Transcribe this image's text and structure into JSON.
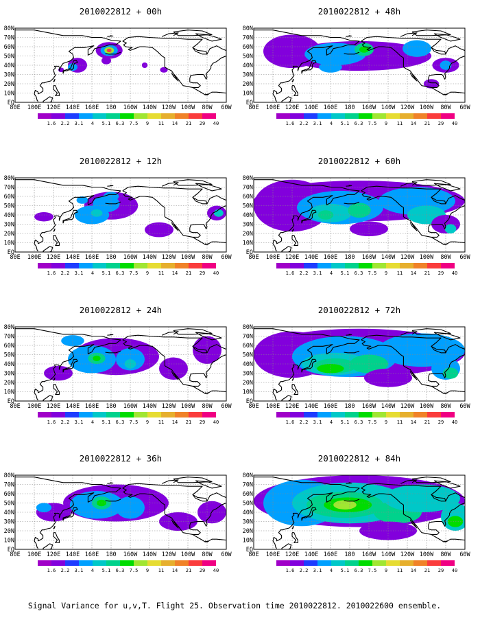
{
  "figure": {
    "caption": "Signal Variance for u,v,T. Flight 25. Observation time 2010022812. 2010022600 ensemble."
  },
  "axes": {
    "lon_ticks": [
      "80E",
      "100E",
      "120E",
      "140E",
      "160E",
      "180",
      "160W",
      "140W",
      "120W",
      "100W",
      "80W",
      "60W"
    ],
    "lat_ticks": [
      "EQ",
      "10N",
      "20N",
      "30N",
      "40N",
      "50N",
      "60N",
      "70N",
      "80N"
    ],
    "lon_range": [
      80,
      300
    ],
    "lat_range": [
      0,
      80
    ]
  },
  "colorbar": {
    "labels": [
      "1.6",
      "2.2",
      "3.1",
      "4",
      "5.1",
      "6.3",
      "7.5",
      "9",
      "11",
      "14",
      "21",
      "29",
      "40"
    ],
    "colors": [
      "#a000c8",
      "#8200dc",
      "#1e3cff",
      "#00a0ff",
      "#00c8c8",
      "#00d28c",
      "#00dc00",
      "#a0e632",
      "#e6dc32",
      "#e6af2d",
      "#f08228",
      "#fa3c3c",
      "#f00082"
    ]
  },
  "panels": [
    {
      "title": "2010022812 + 00h",
      "lead_h": 0,
      "blobs": [
        [
          178,
          56,
          14,
          9,
          1
        ],
        [
          178,
          56,
          9,
          6,
          3
        ],
        [
          178,
          56,
          5,
          3.5,
          7
        ],
        [
          178,
          56,
          2.5,
          2,
          11
        ],
        [
          145,
          40,
          10,
          8,
          1
        ],
        [
          140,
          38,
          5,
          4,
          3
        ],
        [
          235,
          35,
          4,
          3,
          1
        ],
        [
          215,
          40,
          3,
          3,
          1
        ],
        [
          128,
          35,
          3,
          2.5,
          1
        ],
        [
          175,
          45,
          5,
          4,
          1
        ]
      ]
    },
    {
      "title": "2010022812 + 48h",
      "lead_h": 48,
      "blobs": [
        [
          190,
          50,
          75,
          16,
          1
        ],
        [
          120,
          55,
          30,
          18,
          1
        ],
        [
          165,
          52,
          32,
          12,
          3
        ],
        [
          160,
          38,
          12,
          6,
          3
        ],
        [
          195,
          57,
          10,
          7,
          5
        ],
        [
          195,
          57,
          5,
          3.5,
          6
        ],
        [
          250,
          58,
          15,
          9,
          3
        ],
        [
          280,
          40,
          14,
          8,
          1
        ],
        [
          280,
          40,
          6,
          5,
          3
        ],
        [
          265,
          20,
          8,
          5,
          1
        ]
      ]
    },
    {
      "title": "2010022812 + 12h",
      "lead_h": 12,
      "blobs": [
        [
          180,
          50,
          28,
          15,
          1
        ],
        [
          160,
          40,
          18,
          10,
          3
        ],
        [
          175,
          52,
          14,
          9,
          3
        ],
        [
          165,
          42,
          6,
          4,
          4
        ],
        [
          180,
          60,
          8,
          5,
          3
        ],
        [
          150,
          56,
          6,
          4,
          3
        ],
        [
          110,
          38,
          10,
          5,
          1
        ],
        [
          230,
          24,
          15,
          8,
          1
        ],
        [
          290,
          42,
          10,
          8,
          1
        ],
        [
          292,
          42,
          5,
          4,
          4
        ]
      ]
    },
    {
      "title": "2010022812 + 60h",
      "lead_h": 60,
      "blobs": [
        [
          190,
          55,
          110,
          22,
          1
        ],
        [
          120,
          50,
          40,
          28,
          1
        ],
        [
          170,
          48,
          45,
          18,
          3
        ],
        [
          160,
          42,
          22,
          10,
          4
        ],
        [
          155,
          40,
          8,
          5,
          5
        ],
        [
          190,
          45,
          12,
          8,
          5
        ],
        [
          250,
          55,
          40,
          15,
          3
        ],
        [
          260,
          40,
          20,
          10,
          4
        ],
        [
          280,
          30,
          15,
          10,
          1
        ],
        [
          285,
          25,
          6,
          5,
          4
        ],
        [
          200,
          25,
          20,
          8,
          1
        ]
      ]
    },
    {
      "title": "2010022812 + 24h",
      "lead_h": 24,
      "blobs": [
        [
          185,
          48,
          45,
          20,
          1
        ],
        [
          160,
          45,
          25,
          15,
          3
        ],
        [
          165,
          46,
          9,
          6,
          5
        ],
        [
          165,
          46,
          4,
          3,
          6
        ],
        [
          200,
          45,
          15,
          12,
          3
        ],
        [
          200,
          40,
          6,
          5,
          4
        ],
        [
          125,
          30,
          15,
          8,
          1
        ],
        [
          245,
          35,
          15,
          12,
          1
        ],
        [
          280,
          55,
          15,
          15,
          1
        ],
        [
          140,
          65,
          12,
          6,
          3
        ]
      ]
    },
    {
      "title": "2010022812 + 72h",
      "lead_h": 72,
      "blobs": [
        [
          190,
          52,
          110,
          26,
          1
        ],
        [
          120,
          50,
          40,
          25,
          1
        ],
        [
          175,
          48,
          55,
          22,
          3
        ],
        [
          165,
          40,
          35,
          12,
          4
        ],
        [
          165,
          38,
          22,
          8,
          5
        ],
        [
          160,
          35,
          14,
          5,
          6
        ],
        [
          200,
          40,
          20,
          10,
          5
        ],
        [
          255,
          55,
          45,
          18,
          3
        ],
        [
          280,
          35,
          15,
          12,
          3
        ],
        [
          285,
          30,
          8,
          6,
          5
        ],
        [
          220,
          25,
          25,
          10,
          1
        ]
      ]
    },
    {
      "title": "2010022812 + 36h",
      "lead_h": 36,
      "blobs": [
        [
          185,
          50,
          55,
          20,
          1
        ],
        [
          165,
          48,
          28,
          15,
          3
        ],
        [
          170,
          50,
          10,
          7,
          5
        ],
        [
          170,
          50,
          5,
          3.5,
          6
        ],
        [
          200,
          45,
          15,
          12,
          3
        ],
        [
          120,
          40,
          18,
          10,
          1
        ],
        [
          110,
          45,
          8,
          5,
          3
        ],
        [
          250,
          30,
          20,
          10,
          1
        ],
        [
          285,
          40,
          15,
          12,
          1
        ]
      ]
    },
    {
      "title": "2010022812 + 84h",
      "lead_h": 84,
      "blobs": [
        [
          190,
          52,
          110,
          28,
          1
        ],
        [
          130,
          50,
          40,
          25,
          3
        ],
        [
          180,
          50,
          60,
          22,
          4
        ],
        [
          175,
          48,
          40,
          14,
          5
        ],
        [
          178,
          48,
          25,
          8,
          6
        ],
        [
          175,
          48,
          12,
          5,
          7
        ],
        [
          230,
          40,
          25,
          12,
          5
        ],
        [
          255,
          55,
          40,
          15,
          4
        ],
        [
          290,
          35,
          15,
          15,
          4
        ],
        [
          290,
          30,
          8,
          6,
          6
        ],
        [
          220,
          20,
          30,
          10,
          1
        ]
      ]
    }
  ]
}
